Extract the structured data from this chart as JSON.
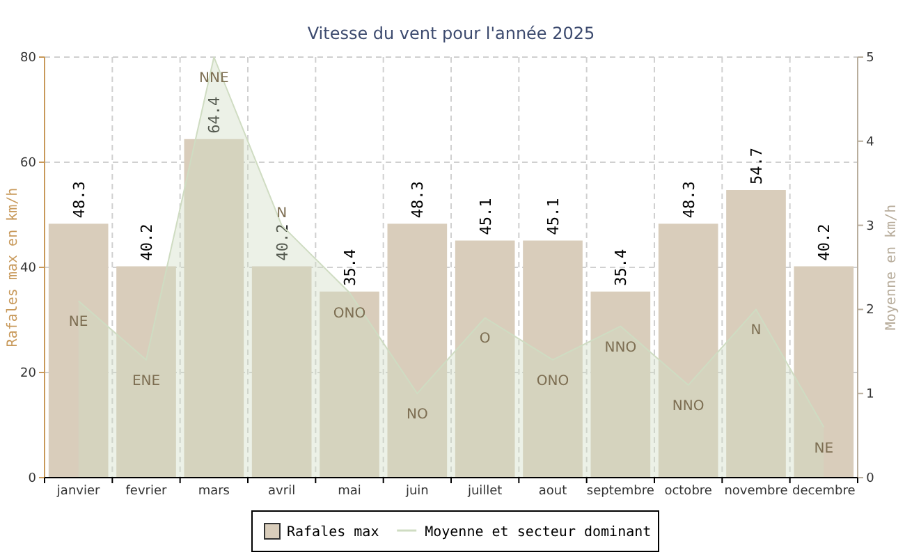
{
  "chart_data": {
    "type": "bar",
    "title": "Vitesse du vent pour l'année 2025",
    "ylabel": "Rafales max en km/h",
    "y2label": "Moyenne en km/h",
    "categories": [
      "janvier",
      "fevrier",
      "mars",
      "avril",
      "mai",
      "juin",
      "juillet",
      "aout",
      "septembre",
      "octobre",
      "novembre",
      "decembre"
    ],
    "series": [
      {
        "name": "Rafales max",
        "color": "#d9cdbb",
        "values": [
          48.3,
          40.2,
          64.4,
          40.2,
          35.4,
          48.3,
          45.1,
          45.1,
          35.4,
          48.3,
          54.7,
          40.2
        ]
      },
      {
        "name": "Moyenne et secteur dominant",
        "type": "area",
        "axis": "y2",
        "color": "#cfdcc2",
        "values": [
          2.1,
          1.4,
          5.0,
          3.0,
          2.2,
          1.0,
          1.9,
          1.4,
          1.8,
          1.1,
          2.0,
          0.6
        ],
        "value_labels": [
          "NE",
          "ENE",
          "NNE",
          "N",
          "ONO",
          "NO",
          "O",
          "ONO",
          "NNO",
          "NNO",
          "N",
          "NE"
        ]
      }
    ],
    "ylim": [
      0,
      80
    ],
    "yticks": [
      0,
      20,
      40,
      60,
      80
    ],
    "y2lim": [
      0,
      5
    ],
    "y2ticks": [
      0,
      1,
      2,
      3,
      4,
      5
    ],
    "data_labels": true,
    "grid": true,
    "legend": "bottom"
  }
}
